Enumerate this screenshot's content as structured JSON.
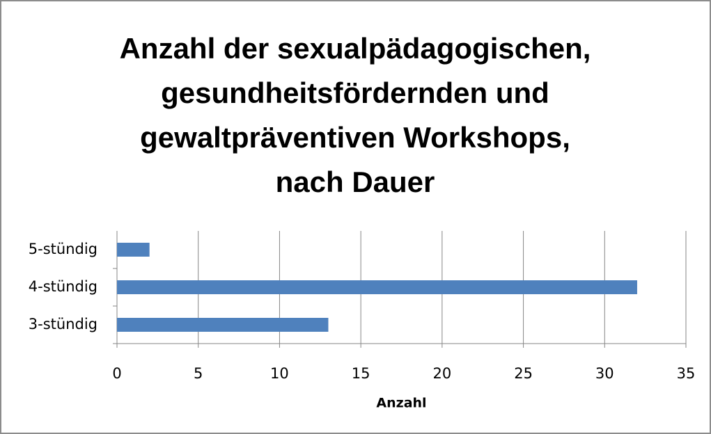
{
  "chart_data": {
    "type": "bar",
    "orientation": "horizontal",
    "title": "Anzahl der sexualpädagogischen,\ngesundheitsfördernden und\ngewaltpräventiven Workshops,\nnach Dauer",
    "categories": [
      "3-stündig",
      "4-stündig",
      "5-stündig"
    ],
    "values": [
      13,
      32,
      2
    ],
    "color": "#4f81bd",
    "xlabel": "Anzahl",
    "xlim": [
      0,
      35
    ],
    "xticks": [
      0,
      5,
      10,
      15,
      20,
      25,
      30,
      35
    ],
    "grid": true
  }
}
